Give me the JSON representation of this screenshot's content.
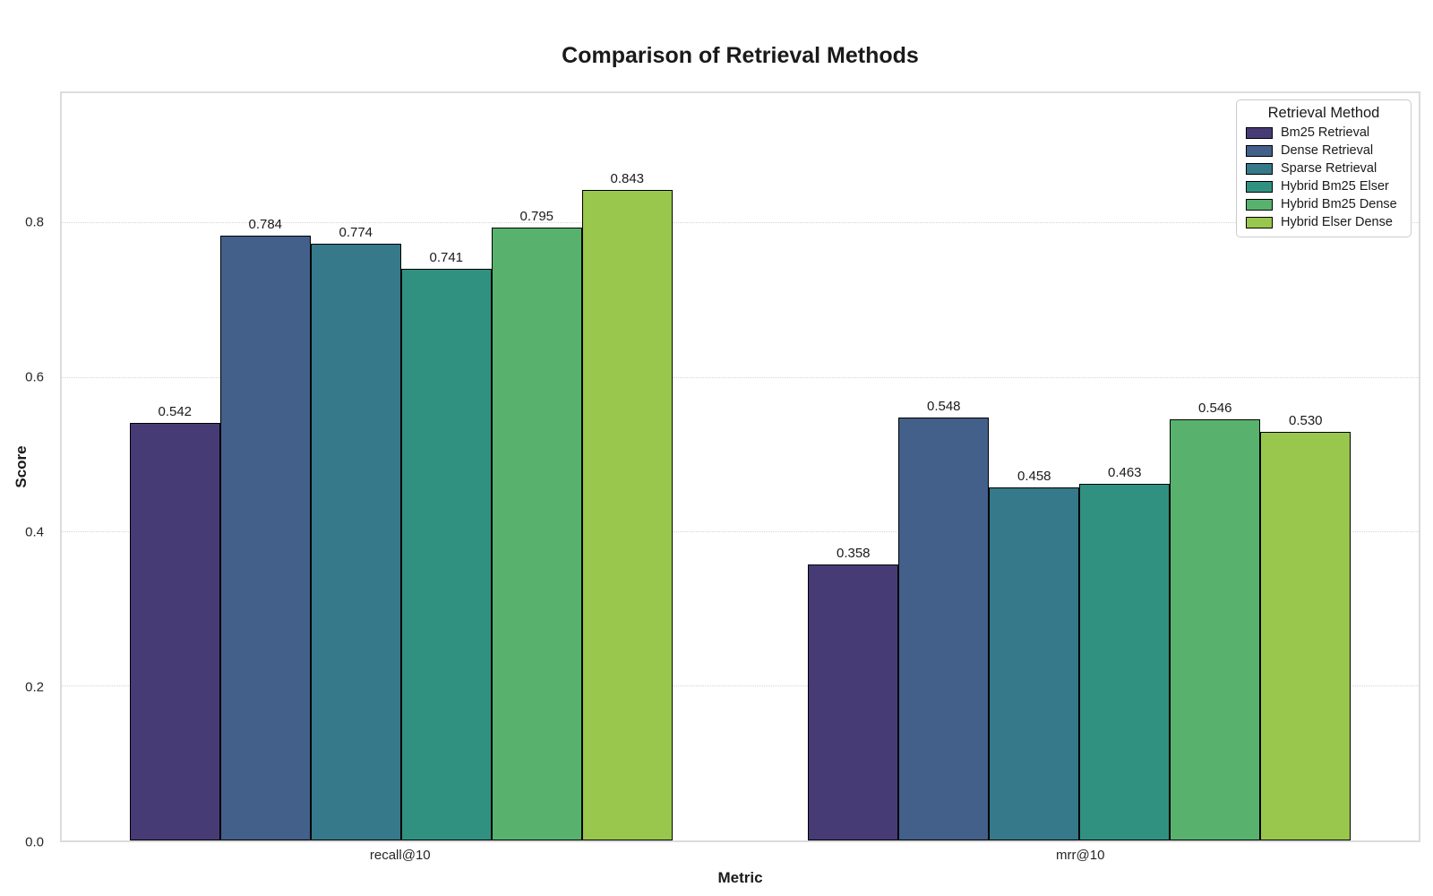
{
  "chart_data": {
    "type": "bar",
    "title": "Comparison of Retrieval Methods",
    "xlabel": "Metric",
    "ylabel": "Score",
    "categories": [
      "recall@10",
      "mrr@10"
    ],
    "series": [
      {
        "name": "Bm25 Retrieval",
        "color": "#473b76",
        "values": [
          0.542,
          0.358
        ]
      },
      {
        "name": "Dense Retrieval",
        "color": "#42608a",
        "values": [
          0.784,
          0.548
        ]
      },
      {
        "name": "Sparse Retrieval",
        "color": "#35798a",
        "values": [
          0.774,
          0.458
        ]
      },
      {
        "name": "Hybrid Bm25 Elser",
        "color": "#319181",
        "values": [
          0.741,
          0.463
        ]
      },
      {
        "name": "Hybrid Bm25 Dense",
        "color": "#58b26e",
        "values": [
          0.795,
          0.546
        ]
      },
      {
        "name": "Hybrid Elser Dense",
        "color": "#99c74d",
        "values": [
          0.843,
          0.53
        ]
      }
    ],
    "yticks": [
      0.0,
      0.2,
      0.4,
      0.6,
      0.8
    ],
    "ytick_decimals": 1,
    "ylim": [
      0,
      0.969
    ],
    "grid": true,
    "legend_title": "Retrieval Method",
    "legend_position": "upper right",
    "value_label_decimals": 3,
    "bar_edge_color": "#000000",
    "grid_color": "#d4d4d4",
    "frame_color": "#dcdcdc",
    "group_width_pct": 40,
    "group_centers_pct": [
      25,
      75
    ]
  }
}
